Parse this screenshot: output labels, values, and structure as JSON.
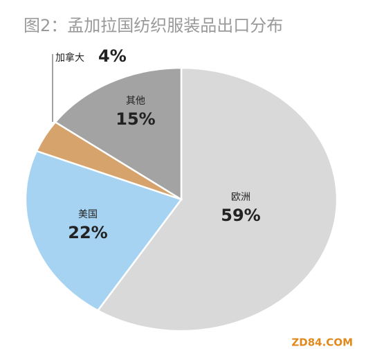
{
  "chart_data": {
    "type": "pie",
    "title": "图2：孟加拉国纺织服装品出口分布",
    "categories": [
      "欧洲",
      "美国",
      "加拿大",
      "其他"
    ],
    "values": [
      59,
      22,
      4,
      15
    ],
    "value_labels": [
      "59%",
      "22%",
      "4%",
      "15%"
    ],
    "colors": [
      "#d9d9d9",
      "#a6d3f2",
      "#d5a36b",
      "#a3a3a3"
    ],
    "watermark": "ZD84.COM"
  }
}
